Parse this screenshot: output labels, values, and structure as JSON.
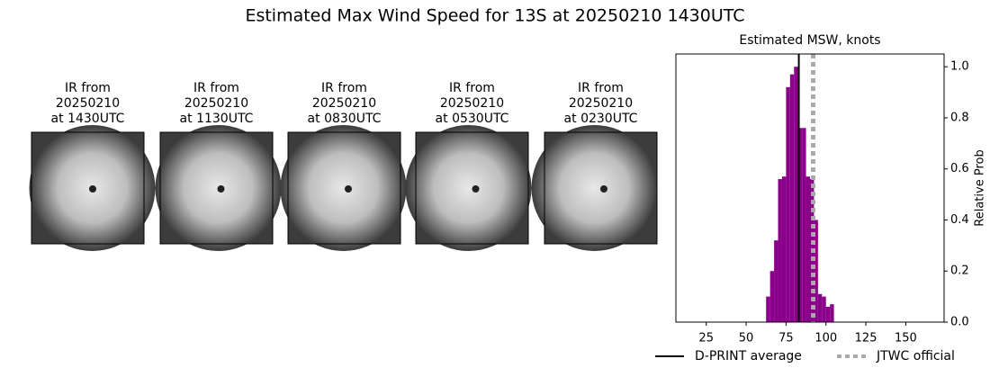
{
  "title": "Estimated Max Wind Speed for 13S at 20250210 1430UTC",
  "panels": [
    {
      "title_lines": [
        "IR from",
        "20250210",
        "at 1430UTC"
      ]
    },
    {
      "title_lines": [
        "IR from",
        "20250210",
        "at 1130UTC"
      ]
    },
    {
      "title_lines": [
        "IR from",
        "20250210",
        "at 0830UTC"
      ]
    },
    {
      "title_lines": [
        "IR from",
        "20250210",
        "at 0530UTC"
      ]
    },
    {
      "title_lines": [
        "IR from",
        "20250210",
        "at 0230UTC"
      ]
    }
  ],
  "chart_data": {
    "type": "histogram",
    "title": "Estimated MSW, knots",
    "y_label": "Relative Prob",
    "bins": [
      62.5,
      65,
      67.5,
      70,
      72.5,
      75,
      77.5,
      80,
      82.5,
      85,
      87.5,
      90,
      92.5,
      95,
      97.5,
      100,
      102.5,
      105
    ],
    "values": [
      0.1,
      0.2,
      0.32,
      0.56,
      0.57,
      0.92,
      0.97,
      1.0,
      0.76,
      0.76,
      0.57,
      0.56,
      0.4,
      0.11,
      0.1,
      0.06,
      0.07
    ],
    "color": "#8b008b",
    "xlim": [
      6,
      174
    ],
    "xticks": [
      25,
      50,
      75,
      100,
      125,
      150
    ],
    "ylim": [
      0,
      1.05
    ],
    "yticks": [
      {
        "value": 0,
        "label": "0.0"
      },
      0.2,
      0.4,
      0.6,
      0.8,
      {
        "value": 1,
        "label": "1.0"
      }
    ],
    "y_axis_side": "right",
    "lines": [
      {
        "name": "D-PRINT average",
        "value": 83,
        "color": "#000000",
        "style": "solid"
      },
      {
        "name": "JTWC official",
        "value": 92,
        "color": "#aaaaaa",
        "style": "dotted"
      }
    ]
  }
}
